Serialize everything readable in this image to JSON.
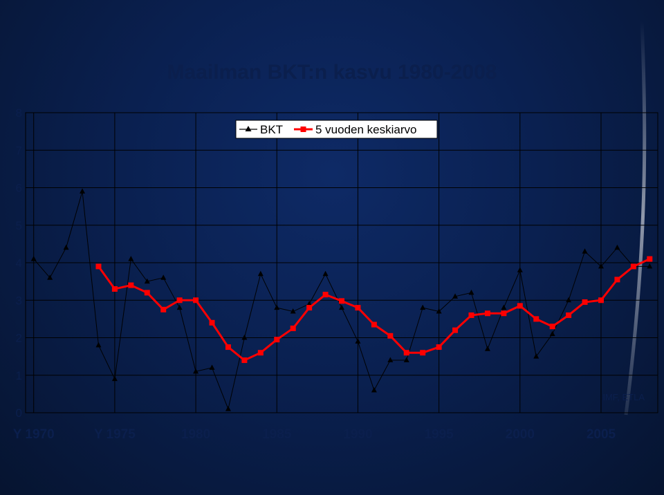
{
  "chart_data": {
    "type": "line",
    "title": "Maailman BKT:n kasvu 1980-2008",
    "source_note": "IMF, ETLA",
    "ylim": [
      0,
      8
    ],
    "yticks": [
      "0",
      "1",
      "2",
      "3",
      "4",
      "5",
      "6",
      "7",
      "8"
    ],
    "x_range": [
      1969.5,
      2008.5
    ],
    "xticks": [
      {
        "x": 1970,
        "label": "Y 1970"
      },
      {
        "x": 1975,
        "label": "Y 1975"
      },
      {
        "x": 1980,
        "label": "1980"
      },
      {
        "x": 1985,
        "label": "1985"
      },
      {
        "x": 1990,
        "label": "1990"
      },
      {
        "x": 1995,
        "label": "1995"
      },
      {
        "x": 2000,
        "label": "2000"
      },
      {
        "x": 2005,
        "label": "2005"
      }
    ],
    "grid": true,
    "legend_position": "top",
    "series": [
      {
        "name": "BKT",
        "color": "#000000",
        "marker": "triangle",
        "x": [
          1970,
          1971,
          1972,
          1973,
          1974,
          1975,
          1976,
          1977,
          1978,
          1979,
          1980,
          1981,
          1982,
          1983,
          1984,
          1985,
          1986,
          1987,
          1988,
          1989,
          1990,
          1991,
          1992,
          1993,
          1994,
          1995,
          1996,
          1997,
          1998,
          1999,
          2000,
          2001,
          2002,
          2003,
          2004,
          2005,
          2006,
          2007,
          2008
        ],
        "values": [
          4.1,
          3.6,
          4.4,
          5.9,
          1.8,
          0.9,
          4.1,
          3.5,
          3.6,
          2.8,
          1.1,
          1.2,
          0.1,
          2.0,
          3.7,
          2.8,
          2.7,
          2.9,
          3.7,
          2.8,
          1.9,
          0.6,
          1.4,
          1.4,
          2.8,
          2.7,
          3.1,
          3.2,
          1.7,
          2.8,
          3.8,
          1.5,
          2.1,
          3.0,
          4.3,
          3.9,
          4.4,
          3.9,
          3.9
        ]
      },
      {
        "name": "5 vuoden keskiarvo",
        "color": "#ff0000",
        "marker": "square",
        "x": [
          1974,
          1975,
          1976,
          1977,
          1978,
          1979,
          1980,
          1981,
          1982,
          1983,
          1984,
          1985,
          1986,
          1987,
          1988,
          1989,
          1990,
          1991,
          1992,
          1993,
          1994,
          1995,
          1996,
          1997,
          1998,
          1999,
          2000,
          2001,
          2002,
          2003,
          2004,
          2005,
          2006,
          2007,
          2008
        ],
        "values": [
          3.9,
          3.3,
          3.4,
          3.2,
          2.75,
          3.0,
          3.0,
          2.4,
          1.75,
          1.4,
          1.6,
          1.95,
          2.25,
          2.8,
          3.15,
          2.98,
          2.8,
          2.35,
          2.05,
          1.6,
          1.6,
          1.75,
          2.2,
          2.6,
          2.65,
          2.65,
          2.85,
          2.5,
          2.3,
          2.6,
          2.95,
          3.0,
          3.55,
          3.9,
          4.1
        ]
      }
    ]
  }
}
